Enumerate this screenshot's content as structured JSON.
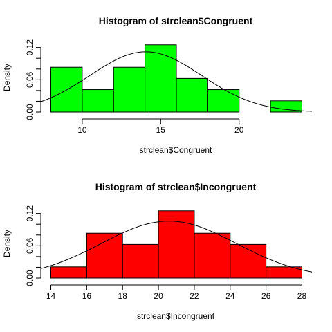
{
  "chart_data": [
    {
      "type": "bar",
      "subtype": "histogram",
      "title": "Histogram of strclean$Congruent",
      "xlabel": "strclean$Congruent",
      "ylabel": "Density",
      "bin_edges": [
        8,
        10,
        12,
        14,
        16,
        18,
        20,
        22,
        24
      ],
      "values": [
        0.0833,
        0.0417,
        0.0833,
        0.125,
        0.0625,
        0.0417,
        0.0,
        0.0208
      ],
      "bar_color": "#00ff00",
      "xlim": [
        8,
        24
      ],
      "ylim": [
        0,
        0.135
      ],
      "x_ticks": [
        10,
        15,
        20
      ],
      "y_ticks": [
        0.0,
        0.06,
        0.12
      ],
      "y_tick_labels": [
        "0.00",
        "0.06",
        "0.12"
      ],
      "curve": {
        "kind": "normal density",
        "mean": 14.05,
        "sd": 3.56
      }
    },
    {
      "type": "bar",
      "subtype": "histogram",
      "title": "Histogram of strclean$Incongruent",
      "xlabel": "strclean$Incongruent",
      "ylabel": "Density",
      "bin_edges": [
        14,
        16,
        18,
        20,
        22,
        24,
        26,
        28
      ],
      "values": [
        0.0208,
        0.0833,
        0.0625,
        0.125,
        0.0833,
        0.0625,
        0.0208
      ],
      "bar_color": "#ff0000",
      "xlim": [
        14,
        28
      ],
      "ylim": [
        0,
        0.135
      ],
      "x_ticks": [
        14,
        16,
        18,
        20,
        22,
        24,
        26,
        28
      ],
      "y_ticks": [
        0.0,
        0.06,
        0.12
      ],
      "y_tick_labels": [
        "0.00",
        "0.06",
        "0.12"
      ],
      "curve": {
        "kind": "normal density",
        "mean": 20.58,
        "sd": 3.77
      }
    }
  ]
}
